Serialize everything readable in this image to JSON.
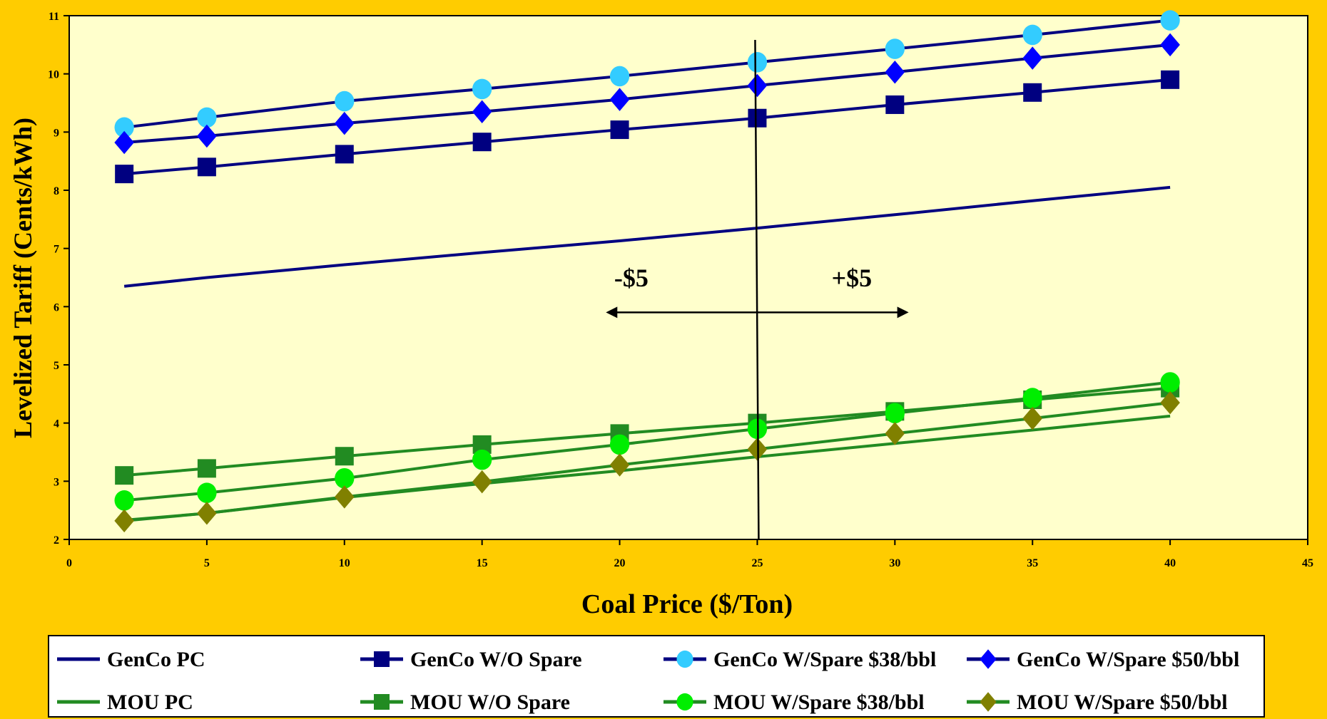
{
  "chart_data": {
    "type": "line",
    "title": "",
    "xlabel": "Coal Price ($/Ton)",
    "ylabel": "Levelized Tariff (Cents/kWh)",
    "xlim": [
      0,
      45
    ],
    "ylim": [
      2,
      11
    ],
    "x_ticks": [
      0,
      5,
      10,
      15,
      20,
      25,
      30,
      35,
      40,
      45
    ],
    "y_ticks": [
      2,
      3,
      4,
      5,
      6,
      7,
      8,
      9,
      10,
      11
    ],
    "x_tick_labels": [
      "0",
      "5",
      "10",
      "15",
      "20",
      "25",
      "30",
      "35",
      "40",
      "45"
    ],
    "y_tick_labels": [
      "2",
      "3",
      "4",
      "5",
      "6",
      "7",
      "8",
      "9",
      "10",
      "11"
    ],
    "grid": false,
    "legend_position": "bottom",
    "plot_background": "#FFFFCC",
    "page_background": "#FFCC00",
    "series": [
      {
        "name": "GenCo PC",
        "color": "#000080",
        "marker": "none",
        "x": [
          2,
          5,
          10,
          15,
          20,
          25,
          30,
          35,
          40
        ],
        "y": [
          6.35,
          6.5,
          6.72,
          6.93,
          7.13,
          7.35,
          7.58,
          7.82,
          8.05
        ]
      },
      {
        "name": "GenCo W/O Spare",
        "color": "#000080",
        "marker": "square",
        "x": [
          2,
          5,
          10,
          15,
          20,
          25,
          30,
          35,
          40
        ],
        "y": [
          8.28,
          8.4,
          8.62,
          8.83,
          9.04,
          9.24,
          9.47,
          9.68,
          9.9
        ]
      },
      {
        "name": "GenCo W/Spare $38/bbl",
        "color": "#000080",
        "marker": "circle",
        "marker_color": "#33CCFF",
        "x": [
          2,
          5,
          10,
          15,
          20,
          25,
          30,
          35,
          40
        ],
        "y": [
          9.08,
          9.25,
          9.53,
          9.74,
          9.96,
          10.2,
          10.43,
          10.67,
          10.92
        ]
      },
      {
        "name": "GenCo W/Spare $50/bbl",
        "color": "#000080",
        "marker": "diamond",
        "marker_color": "#0000FF",
        "x": [
          2,
          5,
          10,
          15,
          20,
          25,
          30,
          35,
          40
        ],
        "y": [
          8.82,
          8.93,
          9.15,
          9.35,
          9.56,
          9.8,
          10.03,
          10.27,
          10.5
        ]
      },
      {
        "name": "MOU PC",
        "color": "#228B22",
        "marker": "none",
        "x": [
          2,
          5,
          10,
          15,
          20,
          25,
          30,
          35,
          40
        ],
        "y": [
          2.33,
          2.45,
          2.72,
          2.96,
          3.18,
          3.42,
          3.65,
          3.88,
          4.12
        ]
      },
      {
        "name": "MOU W/O Spare",
        "color": "#228B22",
        "marker": "square",
        "x": [
          2,
          5,
          10,
          15,
          20,
          25,
          30,
          35,
          40
        ],
        "y": [
          3.1,
          3.22,
          3.43,
          3.63,
          3.82,
          4.0,
          4.2,
          4.4,
          4.6
        ]
      },
      {
        "name": "MOU W/Spare $38/bbl",
        "color": "#228B22",
        "marker": "circle",
        "marker_color": "#00EE00",
        "x": [
          2,
          5,
          10,
          15,
          20,
          25,
          30,
          35,
          40
        ],
        "y": [
          2.67,
          2.8,
          3.05,
          3.37,
          3.63,
          3.9,
          4.17,
          4.43,
          4.7
        ]
      },
      {
        "name": "MOU W/Spare $50/bbl",
        "color": "#228B22",
        "marker": "diamond",
        "marker_color": "#808000",
        "x": [
          2,
          5,
          10,
          15,
          20,
          25,
          30,
          35,
          40
        ],
        "y": [
          2.32,
          2.45,
          2.73,
          2.99,
          3.28,
          3.55,
          3.82,
          4.08,
          4.35
        ]
      }
    ],
    "annotations": {
      "vertical_line_x": 25,
      "arrow_from_x": 19.5,
      "arrow_to_x": 30.5,
      "arrow_y": 6.0,
      "left_label": "-$5",
      "left_label_x": 19.8,
      "right_label": "+$5",
      "right_label_x": 27.7,
      "label_y": 6.35
    }
  }
}
